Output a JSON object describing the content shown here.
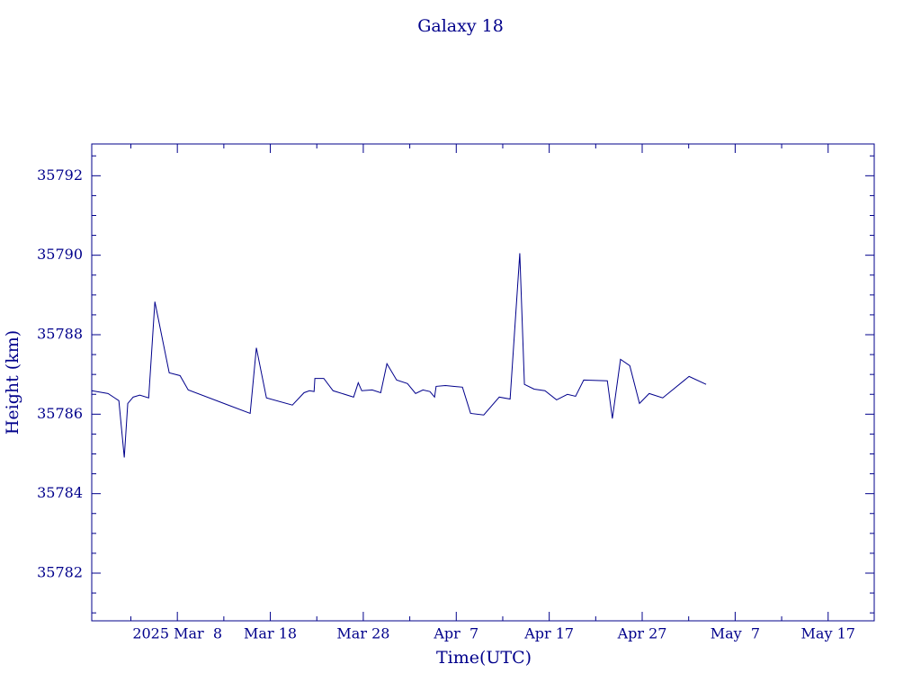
{
  "chart_data": {
    "type": "line",
    "title": "Galaxy 18",
    "xlabel": "Time(UTC)",
    "ylabel": "Height (km)",
    "color": "#00008b",
    "xlim": [
      "2025-02-26T19:00Z",
      "2025-05-21T23:00Z"
    ],
    "xticks": [
      {
        "value": "2025-03-08T00:00Z",
        "label": "2025 Mar  8"
      },
      {
        "value": "2025-03-18T00:00Z",
        "label": "Mar 18"
      },
      {
        "value": "2025-03-28T00:00Z",
        "label": "Mar 28"
      },
      {
        "value": "2025-04-07T00:00Z",
        "label": "Apr  7"
      },
      {
        "value": "2025-04-17T00:00Z",
        "label": "Apr 17"
      },
      {
        "value": "2025-04-27T00:00Z",
        "label": "Apr 27"
      },
      {
        "value": "2025-05-07T00:00Z",
        "label": "May  7"
      },
      {
        "value": "2025-05-17T00:00Z",
        "label": "May 17"
      }
    ],
    "xminorticks": [
      "2025-03-03T00:00Z",
      "2025-03-13T00:00Z",
      "2025-03-23T00:00Z",
      "2025-04-02T00:00Z",
      "2025-04-12T00:00Z",
      "2025-04-22T00:00Z",
      "2025-05-02T00:00Z",
      "2025-05-12T00:00Z"
    ],
    "ylim": [
      35780.8,
      35792.8
    ],
    "yticks": [
      35782,
      35784,
      35786,
      35788,
      35790,
      35792
    ],
    "yminorticks": [
      35781,
      35781.5,
      35782.5,
      35783,
      35783.5,
      35784.5,
      35785,
      35785.5,
      35786.5,
      35787,
      35787.5,
      35788.5,
      35789,
      35789.5,
      35790.5,
      35791,
      35791.5,
      35792.5
    ],
    "x": [
      "2025-02-26T19:00Z",
      "2025-02-28T13:00Z",
      "2025-03-01T17:00Z",
      "2025-03-02T07:00Z",
      "2025-03-02T16:00Z",
      "2025-03-03T06:00Z",
      "2025-03-03T23:00Z",
      "2025-03-04T22:00Z",
      "2025-03-05T14:00Z",
      "2025-03-07T03:00Z",
      "2025-03-08T07:00Z",
      "2025-03-09T04:00Z",
      "2025-03-15T20:00Z",
      "2025-03-16T12:00Z",
      "2025-03-17T14:00Z",
      "2025-03-20T09:00Z",
      "2025-03-21T15:00Z",
      "2025-03-22T05:00Z",
      "2025-03-22T17:00Z",
      "2025-03-22T19:00Z",
      "2025-03-23T18:00Z",
      "2025-03-24T18:00Z",
      "2025-03-26T23:00Z",
      "2025-03-27T11:00Z",
      "2025-03-27T20:00Z",
      "2025-03-28T23:00Z",
      "2025-03-29T21:00Z",
      "2025-03-30T13:00Z",
      "2025-03-31T14:00Z",
      "2025-04-01T18:00Z",
      "2025-04-02T15:00Z",
      "2025-04-03T10:00Z",
      "2025-04-04T04:00Z",
      "2025-04-04T16:00Z",
      "2025-04-04T20:00Z",
      "2025-04-05T20:00Z",
      "2025-04-07T16:00Z",
      "2025-04-08T13:00Z",
      "2025-04-09T23:00Z",
      "2025-04-11T15:00Z",
      "2025-04-12T19:00Z",
      "2025-04-13T20:00Z",
      "2025-04-14T08:00Z",
      "2025-04-15T09:00Z",
      "2025-04-16T13:00Z",
      "2025-04-17T19:00Z",
      "2025-04-18T23:00Z",
      "2025-04-19T20:00Z",
      "2025-04-20T17:00Z",
      "2025-04-23T06:00Z",
      "2025-04-23T19:00Z",
      "2025-04-24T16:00Z",
      "2025-04-25T16:00Z",
      "2025-04-26T17:00Z",
      "2025-04-27T18:00Z",
      "2025-04-29T05:00Z",
      "2025-05-02T01:00Z",
      "2025-05-03T21:00Z"
    ],
    "values": [
      35786.59,
      35786.52,
      35786.34,
      35784.91,
      35786.27,
      35786.43,
      35786.48,
      35786.41,
      35788.83,
      35787.04,
      35786.97,
      35786.61,
      35786.02,
      35787.67,
      35786.41,
      35786.23,
      35786.54,
      35786.59,
      35786.57,
      35786.9,
      35786.9,
      35786.59,
      35786.43,
      35786.79,
      35786.59,
      35786.61,
      35786.54,
      35787.27,
      35786.86,
      35786.77,
      35786.52,
      35786.61,
      35786.57,
      35786.43,
      35786.7,
      35786.72,
      35786.68,
      35786.02,
      35785.98,
      35786.43,
      35786.38,
      35790.05,
      35786.75,
      35786.63,
      35786.59,
      35786.36,
      35786.5,
      35786.45,
      35786.86,
      35786.84,
      35785.89,
      35787.38,
      35787.22,
      35786.27,
      35786.52,
      35786.41,
      35786.95,
      35786.75
    ]
  }
}
